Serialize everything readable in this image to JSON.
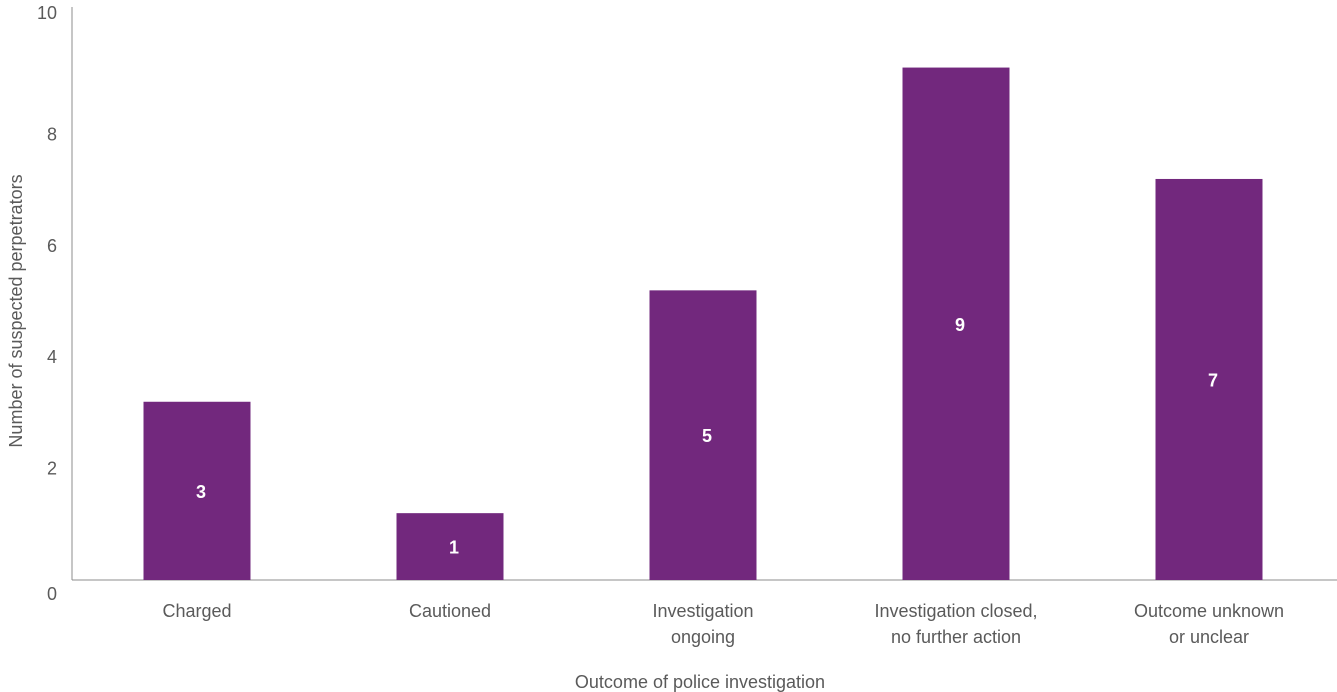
{
  "chart_data": {
    "type": "bar",
    "title": "",
    "xlabel": "Outcome of police investigation",
    "ylabel": "Number of suspected perpetrators",
    "categories": [
      [
        "Charged"
      ],
      [
        "Cautioned"
      ],
      [
        "Investigation",
        "ongoing"
      ],
      [
        "Investigation closed,",
        "no further action"
      ],
      [
        "Outcome unknown",
        "or unclear"
      ]
    ],
    "values": [
      3,
      1,
      5,
      9,
      7
    ],
    "data_labels": [
      "3",
      "1",
      "5",
      "9",
      "7"
    ],
    "y_ticks": [
      0,
      2,
      4,
      6,
      8,
      10
    ],
    "ylim": [
      0,
      10
    ],
    "bar_color": "#72287d",
    "grid": false,
    "legend": "none"
  }
}
